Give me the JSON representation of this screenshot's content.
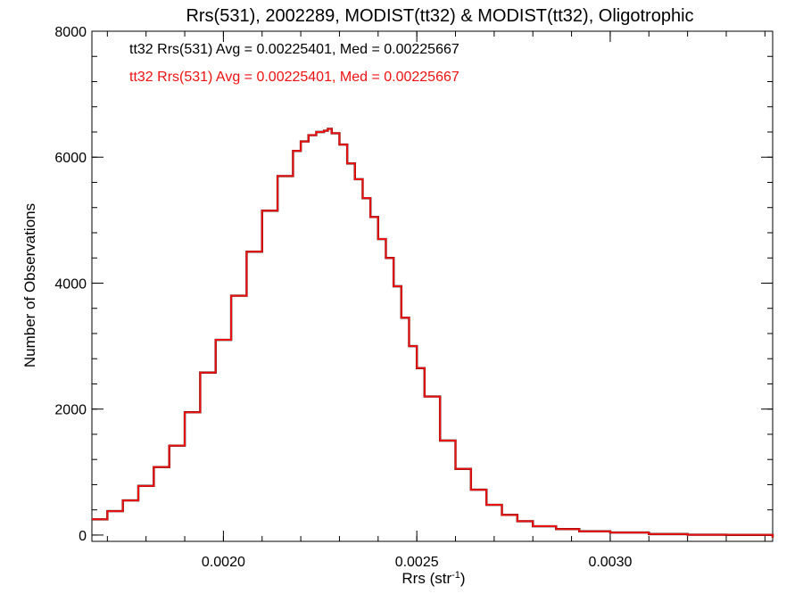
{
  "chart_data": {
    "type": "line",
    "step": true,
    "title": "Rrs(531), 2002289, MODIST(tt32) & MODIST(tt32), Oligotrophic",
    "xlabel_base": "Rrs (str",
    "xlabel_sup": "-1",
    "xlabel_end": ")",
    "ylabel": "Number of Observations",
    "xlim": [
      0.00166,
      0.00342
    ],
    "ylim": [
      -100,
      8000
    ],
    "x_ticks": [
      {
        "value": 0.002,
        "label": "0.0020"
      },
      {
        "value": 0.0025,
        "label": "0.0025"
      },
      {
        "value": 0.003,
        "label": "0.0030"
      }
    ],
    "y_ticks": [
      {
        "value": 0,
        "label": "0"
      },
      {
        "value": 2000,
        "label": "2000"
      },
      {
        "value": 4000,
        "label": "4000"
      },
      {
        "value": 6000,
        "label": "6000"
      },
      {
        "value": 8000,
        "label": "8000"
      }
    ],
    "annotations": [
      {
        "text": "tt32 Rrs(531) Avg = 0.00225401, Med = 0.00225667",
        "color": "#000000"
      },
      {
        "text": "tt32 Rrs(531) Avg = 0.00225401, Med = 0.00225667",
        "color": "#ee1111"
      }
    ],
    "series": [
      {
        "color": "#000000",
        "x": [
          0.00166,
          0.0017,
          0.00174,
          0.00178,
          0.00182,
          0.00186,
          0.0019,
          0.00194,
          0.00198,
          0.00202,
          0.00206,
          0.0021,
          0.00214,
          0.00218,
          0.0022,
          0.00222,
          0.00224,
          0.00226,
          0.00227,
          0.00228,
          0.0023,
          0.00232,
          0.00234,
          0.00236,
          0.00238,
          0.0024,
          0.00242,
          0.00244,
          0.00246,
          0.00248,
          0.0025,
          0.00252,
          0.00256,
          0.0026,
          0.00264,
          0.00268,
          0.00272,
          0.00276,
          0.0028,
          0.00286,
          0.00292,
          0.003,
          0.0031,
          0.0032,
          0.0033,
          0.00342
        ],
        "y": [
          250,
          380,
          550,
          780,
          1080,
          1420,
          1950,
          2580,
          3100,
          3800,
          4500,
          5150,
          5700,
          6100,
          6250,
          6350,
          6400,
          6420,
          6450,
          6380,
          6200,
          5900,
          5650,
          5350,
          5050,
          4700,
          4400,
          3950,
          3450,
          3000,
          2650,
          2200,
          1500,
          1050,
          720,
          480,
          320,
          220,
          140,
          95,
          60,
          40,
          15,
          5,
          2,
          -40
        ]
      },
      {
        "color": "#ee1111",
        "x": [
          0.00166,
          0.0017,
          0.00174,
          0.00178,
          0.00182,
          0.00186,
          0.0019,
          0.00194,
          0.00198,
          0.00202,
          0.00206,
          0.0021,
          0.00214,
          0.00218,
          0.0022,
          0.00222,
          0.00224,
          0.00226,
          0.00227,
          0.00228,
          0.0023,
          0.00232,
          0.00234,
          0.00236,
          0.00238,
          0.0024,
          0.00242,
          0.00244,
          0.00246,
          0.00248,
          0.0025,
          0.00252,
          0.00256,
          0.0026,
          0.00264,
          0.00268,
          0.00272,
          0.00276,
          0.0028,
          0.00286,
          0.00292,
          0.003,
          0.0031,
          0.0032,
          0.0033,
          0.00342
        ],
        "y": [
          250,
          380,
          550,
          780,
          1080,
          1420,
          1950,
          2580,
          3100,
          3800,
          4500,
          5150,
          5700,
          6100,
          6250,
          6350,
          6400,
          6420,
          6450,
          6380,
          6200,
          5900,
          5650,
          5350,
          5050,
          4700,
          4400,
          3950,
          3450,
          3000,
          2650,
          2200,
          1500,
          1050,
          720,
          480,
          320,
          220,
          140,
          95,
          60,
          40,
          15,
          5,
          2,
          -40
        ]
      }
    ]
  }
}
